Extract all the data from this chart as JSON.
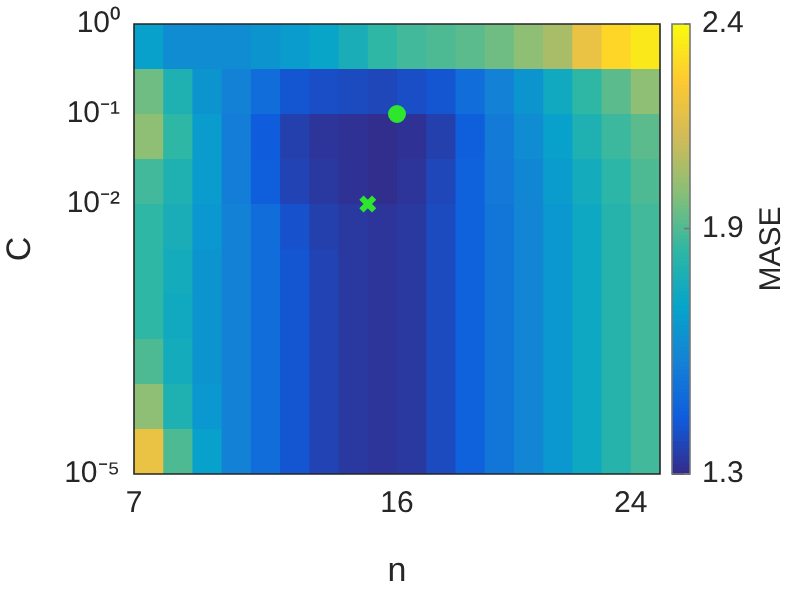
{
  "chart_data": {
    "type": "heatmap",
    "xlabel": "n",
    "ylabel": "C",
    "clabel": "MASE",
    "log": "y",
    "x": [
      7.5,
      8.5,
      9.5,
      10.5,
      11.5,
      12.5,
      13.5,
      14.5,
      15.5,
      16.5,
      17.5,
      18.5,
      19.5,
      20.5,
      21.5,
      22.5,
      23.5,
      24.5
    ],
    "y": [
      0.5623,
      0.1778,
      0.05623,
      0.01778,
      0.005623,
      0.001778,
      0.0005623,
      0.0001778,
      5.623e-05,
      1.778e-05
    ],
    "xlim": [
      7,
      25
    ],
    "ylim": [
      1e-05,
      1
    ],
    "xticks": [
      {
        "value": 7,
        "label": "7"
      },
      {
        "value": 16,
        "label": "16"
      },
      {
        "value": 24,
        "label": "24"
      }
    ],
    "yticks": [
      {
        "value": 1,
        "label": "10⁰"
      },
      {
        "value": 0.1,
        "label": "10⁻¹"
      },
      {
        "value": 0.01,
        "label": "10⁻²"
      },
      {
        "value": 1e-05,
        "label": "10⁻⁵"
      }
    ],
    "clim": [
      1.3,
      2.4
    ],
    "cticks": [
      {
        "value": 1.3,
        "label": "1.3"
      },
      {
        "value": 1.9,
        "label": "1.9"
      },
      {
        "value": 2.4,
        "label": "2.4"
      }
    ],
    "cells": [
      [
        1.7,
        1.62,
        1.62,
        1.62,
        1.65,
        1.68,
        1.72,
        1.78,
        1.85,
        1.88,
        1.9,
        1.92,
        1.95,
        2.0,
        2.05,
        2.2,
        2.3,
        2.35
      ],
      [
        1.95,
        1.8,
        1.65,
        1.58,
        1.5,
        1.42,
        1.4,
        1.39,
        1.38,
        1.4,
        1.42,
        1.5,
        1.58,
        1.65,
        1.75,
        1.85,
        1.92,
        2.0
      ],
      [
        2.0,
        1.85,
        1.68,
        1.56,
        1.44,
        1.36,
        1.33,
        1.32,
        1.31,
        1.32,
        1.36,
        1.45,
        1.55,
        1.62,
        1.7,
        1.8,
        1.87,
        1.92
      ],
      [
        1.88,
        1.8,
        1.68,
        1.56,
        1.45,
        1.37,
        1.34,
        1.32,
        1.31,
        1.33,
        1.38,
        1.46,
        1.54,
        1.6,
        1.68,
        1.76,
        1.84,
        1.9
      ],
      [
        1.85,
        1.78,
        1.66,
        1.58,
        1.5,
        1.41,
        1.36,
        1.34,
        1.33,
        1.34,
        1.39,
        1.46,
        1.53,
        1.59,
        1.66,
        1.74,
        1.82,
        1.88
      ],
      [
        1.85,
        1.76,
        1.65,
        1.58,
        1.5,
        1.42,
        1.37,
        1.34,
        1.33,
        1.34,
        1.39,
        1.46,
        1.53,
        1.59,
        1.66,
        1.74,
        1.82,
        1.88
      ],
      [
        1.85,
        1.75,
        1.65,
        1.58,
        1.5,
        1.42,
        1.37,
        1.34,
        1.33,
        1.34,
        1.39,
        1.46,
        1.53,
        1.59,
        1.66,
        1.74,
        1.82,
        1.88
      ],
      [
        1.9,
        1.76,
        1.65,
        1.58,
        1.5,
        1.42,
        1.37,
        1.34,
        1.33,
        1.34,
        1.39,
        1.46,
        1.53,
        1.59,
        1.66,
        1.74,
        1.82,
        1.88
      ],
      [
        2.0,
        1.8,
        1.66,
        1.58,
        1.5,
        1.42,
        1.37,
        1.34,
        1.33,
        1.34,
        1.39,
        1.46,
        1.53,
        1.59,
        1.66,
        1.74,
        1.82,
        1.88
      ],
      [
        2.2,
        1.9,
        1.7,
        1.58,
        1.5,
        1.42,
        1.37,
        1.34,
        1.33,
        1.34,
        1.39,
        1.46,
        1.53,
        1.59,
        1.66,
        1.74,
        1.82,
        1.88
      ]
    ],
    "series": [
      {
        "type": "scatter",
        "marker": "circle",
        "color": "#2ee62e",
        "x": [
          16
        ],
        "values": [
          0.1
        ]
      },
      {
        "type": "scatter",
        "marker": "cross",
        "color": "#2ee62e",
        "x": [
          15
        ],
        "values": [
          0.01
        ]
      }
    ]
  }
}
